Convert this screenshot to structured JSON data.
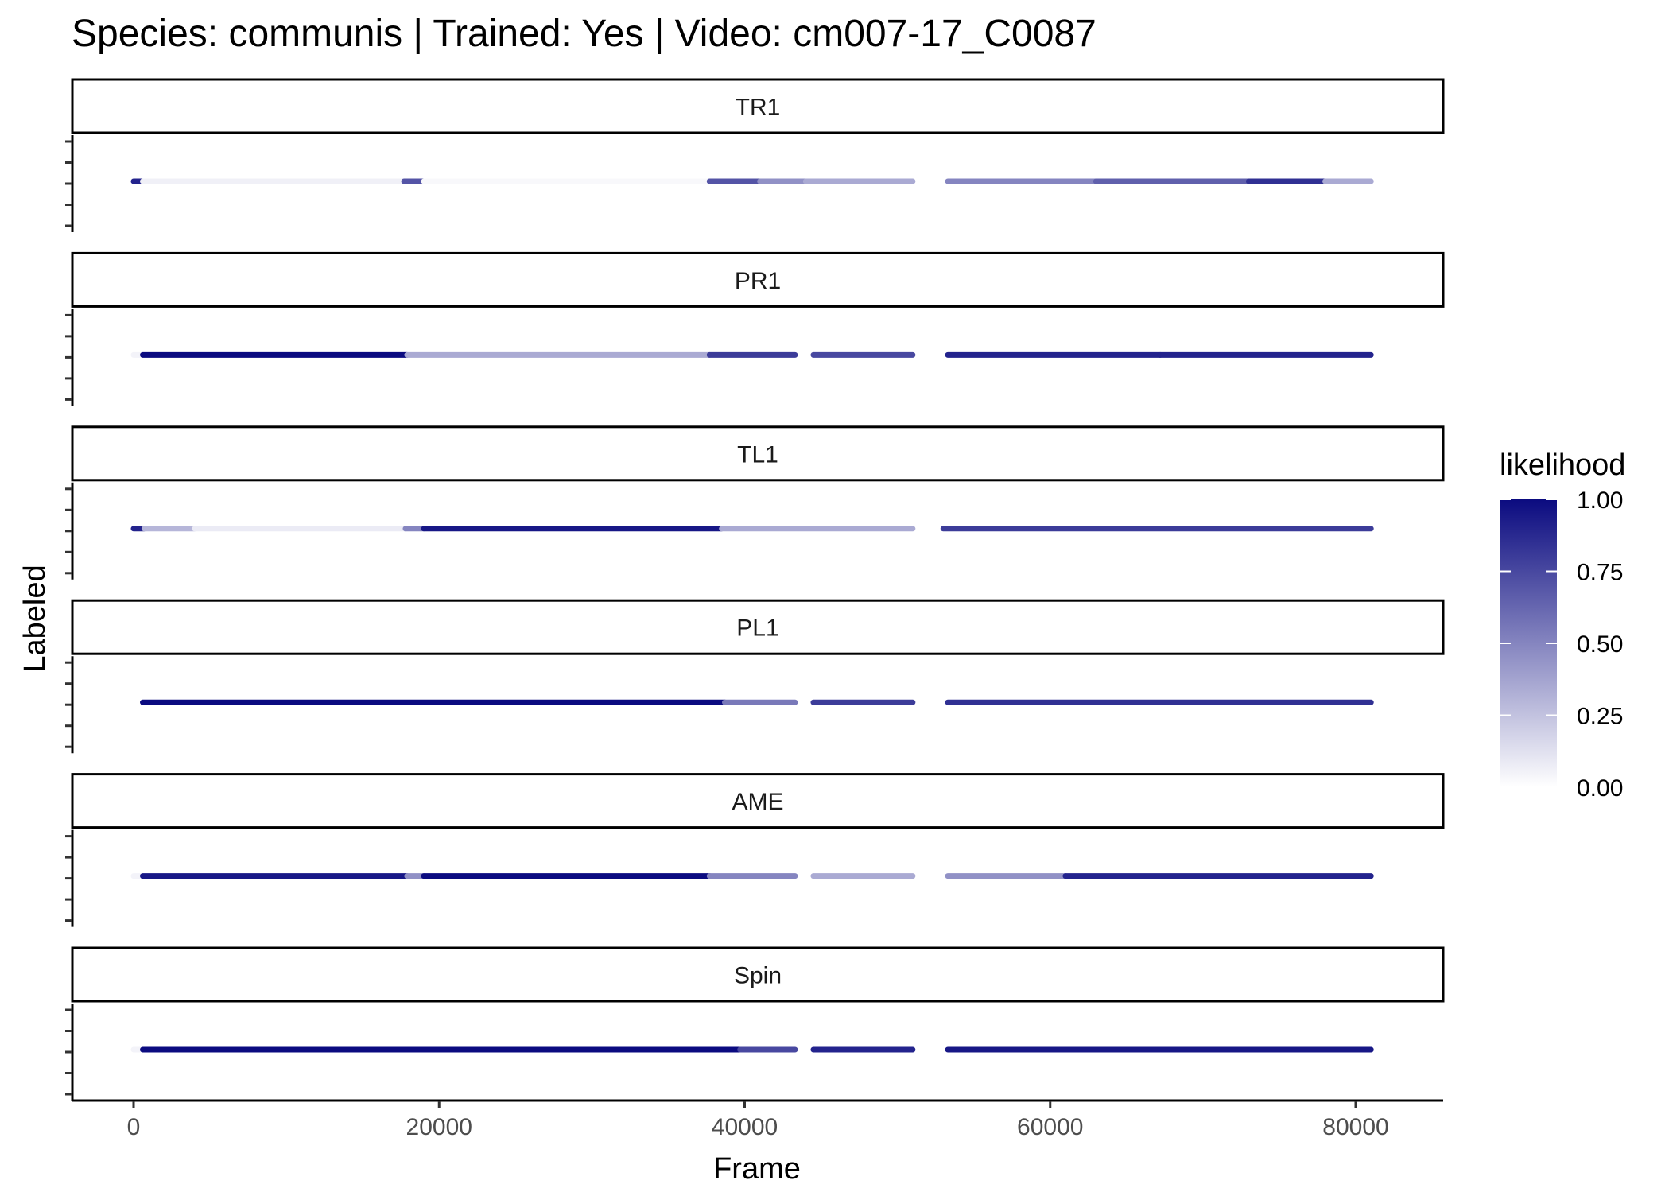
{
  "chart_data": {
    "type": "scatter",
    "title": "Species: communis | Trained: Yes | Video: cm007-17_C0087",
    "xlabel": "Frame",
    "ylabel": "Labeled",
    "xlim": [
      -4000,
      85000
    ],
    "x_ticks": [
      0,
      20000,
      40000,
      60000,
      80000
    ],
    "x_tick_labels": [
      "0",
      "20000",
      "40000",
      "60000",
      "80000"
    ],
    "panels": [
      {
        "name": "TR1",
        "segments": [
          {
            "x0": 0,
            "x1": 600,
            "likelihood": 0.9
          },
          {
            "x0": 600,
            "x1": 17700,
            "likelihood": 0.06
          },
          {
            "x0": 17700,
            "x1": 19000,
            "likelihood": 0.7
          },
          {
            "x0": 19000,
            "x1": 37700,
            "likelihood": 0.03
          },
          {
            "x0": 37700,
            "x1": 41000,
            "likelihood": 0.7
          },
          {
            "x0": 41000,
            "x1": 44000,
            "likelihood": 0.45
          },
          {
            "x0": 44000,
            "x1": 51000,
            "likelihood": 0.35
          },
          {
            "x0": 53300,
            "x1": 63000,
            "likelihood": 0.5
          },
          {
            "x0": 63000,
            "x1": 73000,
            "likelihood": 0.65
          },
          {
            "x0": 73000,
            "x1": 78000,
            "likelihood": 0.85
          },
          {
            "x0": 78000,
            "x1": 81000,
            "likelihood": 0.35
          }
        ]
      },
      {
        "name": "PR1",
        "segments": [
          {
            "x0": 0,
            "x1": 600,
            "likelihood": 0.05
          },
          {
            "x0": 600,
            "x1": 17900,
            "likelihood": 1.0
          },
          {
            "x0": 17900,
            "x1": 37700,
            "likelihood": 0.35
          },
          {
            "x0": 37700,
            "x1": 43300,
            "likelihood": 0.8
          },
          {
            "x0": 44500,
            "x1": 51000,
            "likelihood": 0.75
          },
          {
            "x0": 53300,
            "x1": 67200,
            "likelihood": 0.9
          },
          {
            "x0": 67200,
            "x1": 81000,
            "likelihood": 0.9
          }
        ]
      },
      {
        "name": "TL1",
        "segments": [
          {
            "x0": 0,
            "x1": 700,
            "likelihood": 0.9
          },
          {
            "x0": 700,
            "x1": 4000,
            "likelihood": 0.3
          },
          {
            "x0": 4000,
            "x1": 17800,
            "likelihood": 0.08
          },
          {
            "x0": 17800,
            "x1": 19000,
            "likelihood": 0.5
          },
          {
            "x0": 19000,
            "x1": 38500,
            "likelihood": 0.95
          },
          {
            "x0": 38500,
            "x1": 51000,
            "likelihood": 0.35
          },
          {
            "x0": 53000,
            "x1": 81000,
            "likelihood": 0.8
          }
        ]
      },
      {
        "name": "PL1",
        "segments": [
          {
            "x0": 600,
            "x1": 38700,
            "likelihood": 1.0
          },
          {
            "x0": 38700,
            "x1": 43300,
            "likelihood": 0.55
          },
          {
            "x0": 44500,
            "x1": 51000,
            "likelihood": 0.8
          },
          {
            "x0": 53300,
            "x1": 81000,
            "likelihood": 0.85
          }
        ]
      },
      {
        "name": "AME",
        "segments": [
          {
            "x0": 0,
            "x1": 600,
            "likelihood": 0.05
          },
          {
            "x0": 600,
            "x1": 17900,
            "likelihood": 0.95
          },
          {
            "x0": 17900,
            "x1": 19000,
            "likelihood": 0.45
          },
          {
            "x0": 19000,
            "x1": 37700,
            "likelihood": 1.0
          },
          {
            "x0": 37700,
            "x1": 43300,
            "likelihood": 0.5
          },
          {
            "x0": 44500,
            "x1": 51000,
            "likelihood": 0.35
          },
          {
            "x0": 53300,
            "x1": 61000,
            "likelihood": 0.45
          },
          {
            "x0": 61000,
            "x1": 81000,
            "likelihood": 0.9
          }
        ]
      },
      {
        "name": "Spin",
        "segments": [
          {
            "x0": 0,
            "x1": 600,
            "likelihood": 0.05
          },
          {
            "x0": 600,
            "x1": 39700,
            "likelihood": 1.0
          },
          {
            "x0": 39700,
            "x1": 43300,
            "likelihood": 0.75
          },
          {
            "x0": 44500,
            "x1": 51000,
            "likelihood": 0.9
          },
          {
            "x0": 53300,
            "x1": 81000,
            "likelihood": 0.95
          }
        ]
      }
    ],
    "legend": {
      "title": "likelihood",
      "placement": "right",
      "breaks": [
        1.0,
        0.75,
        0.5,
        0.25,
        0.0
      ],
      "labels": [
        "1.00",
        "0.75",
        "0.50",
        "0.25",
        "0.00"
      ],
      "color_low": "#ffffff",
      "color_high": "#0b0b80"
    },
    "grid": false
  }
}
